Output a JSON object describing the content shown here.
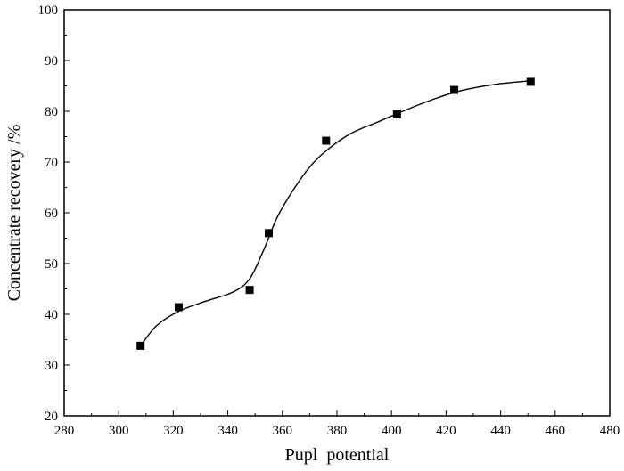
{
  "chart_data": {
    "type": "scatter",
    "title": "",
    "xlabel": "Pupl  potential",
    "ylabel": "Concentrate recovery /%",
    "xlim": [
      280,
      480
    ],
    "ylim": [
      20,
      100
    ],
    "xticks": [
      280,
      300,
      320,
      340,
      360,
      380,
      400,
      420,
      440,
      460,
      480
    ],
    "yticks": [
      20,
      30,
      40,
      50,
      60,
      70,
      80,
      90,
      100
    ],
    "grid": false,
    "legend": "none",
    "marker": "square",
    "color": "#000000",
    "series": [
      {
        "points": [
          {
            "x": 308,
            "y": 33.8
          },
          {
            "x": 322,
            "y": 41.4
          },
          {
            "x": 348,
            "y": 44.8
          },
          {
            "x": 355,
            "y": 56.0
          },
          {
            "x": 376,
            "y": 74.2
          },
          {
            "x": 402,
            "y": 79.4
          },
          {
            "x": 423,
            "y": 84.2
          },
          {
            "x": 451,
            "y": 85.8
          }
        ]
      }
    ],
    "fit_curve": {
      "type": "smooth",
      "points": [
        {
          "x": 308,
          "y": 33.8
        },
        {
          "x": 314,
          "y": 37.8
        },
        {
          "x": 322,
          "y": 40.6
        },
        {
          "x": 332,
          "y": 42.6
        },
        {
          "x": 342,
          "y": 44.4
        },
        {
          "x": 348,
          "y": 47.0
        },
        {
          "x": 353,
          "y": 52.5
        },
        {
          "x": 358,
          "y": 59.0
        },
        {
          "x": 364,
          "y": 64.5
        },
        {
          "x": 370,
          "y": 69.0
        },
        {
          "x": 376,
          "y": 72.2
        },
        {
          "x": 385,
          "y": 75.6
        },
        {
          "x": 395,
          "y": 77.9
        },
        {
          "x": 405,
          "y": 80.2
        },
        {
          "x": 415,
          "y": 82.3
        },
        {
          "x": 425,
          "y": 84.0
        },
        {
          "x": 438,
          "y": 85.3
        },
        {
          "x": 451,
          "y": 86.0
        }
      ]
    }
  }
}
